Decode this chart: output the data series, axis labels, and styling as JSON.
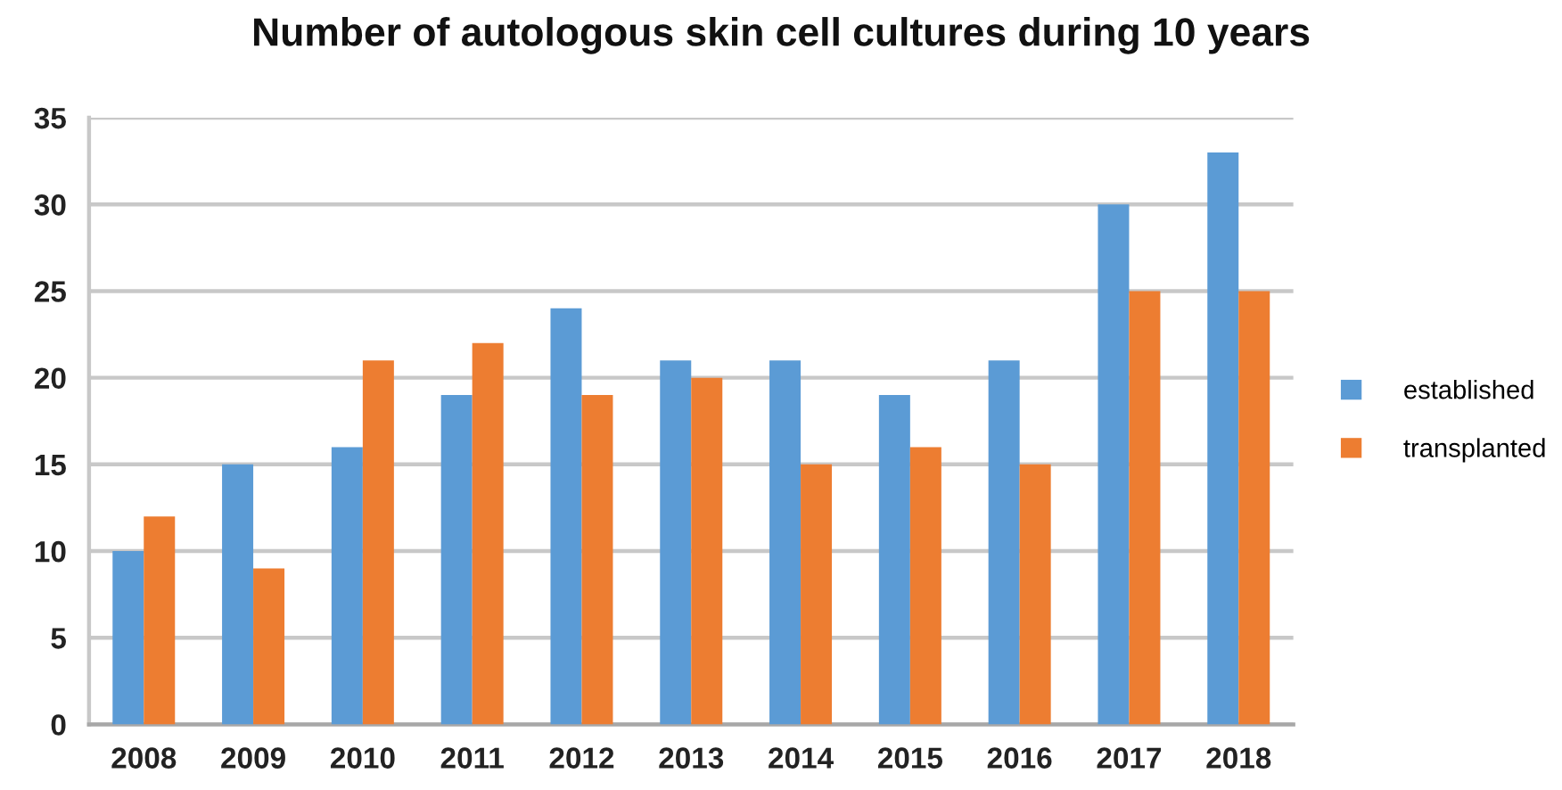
{
  "chart_data": {
    "type": "bar",
    "title": "Number of autologous skin cell cultures during 10 years",
    "categories": [
      "2008",
      "2009",
      "2010",
      "2011",
      "2012",
      "2013",
      "2014",
      "2015",
      "2016",
      "2017",
      "2018"
    ],
    "series": [
      {
        "name": "established",
        "color": "#5b9bd5",
        "values": [
          10,
          15,
          16,
          19,
          24,
          21,
          21,
          19,
          21,
          30,
          33
        ]
      },
      {
        "name": "transplanted",
        "color": "#ed7d31",
        "values": [
          12,
          9,
          21,
          22,
          19,
          20,
          15,
          16,
          15,
          25,
          25
        ]
      }
    ],
    "ylim": [
      0,
      35
    ],
    "yticks": [
      0,
      5,
      10,
      15,
      20,
      25,
      30,
      35
    ],
    "grid": "y",
    "legend": "right"
  }
}
